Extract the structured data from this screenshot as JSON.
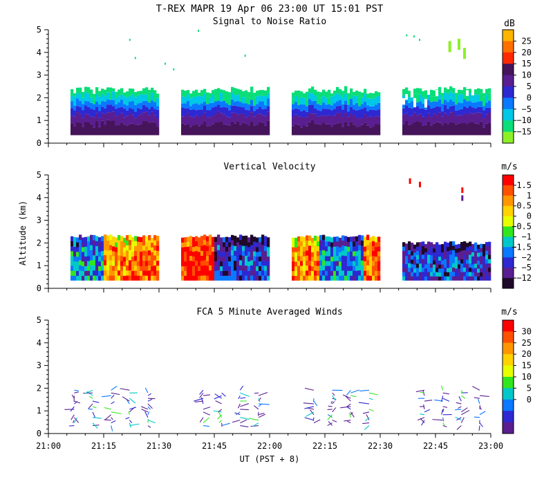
{
  "header": {
    "title": "T-REX  MAPR 19 Apr 06  23:00 UT  15:01  PST"
  },
  "shared_axes": {
    "x_tick_labels": [
      "21:00",
      "21:15",
      "21:30",
      "21:45",
      "22:00",
      "22:15",
      "22:30",
      "22:45",
      "23:00"
    ],
    "x_range_minutes": [
      0,
      120
    ],
    "xlabel": "UT  (PST + 8)",
    "ylabel": "Altitude (km)"
  },
  "chart_data": [
    {
      "id": "snr",
      "type": "heatmap",
      "title": "Signal to Noise Ratio",
      "unit": "dB",
      "xlabel": "",
      "ylabel": "",
      "ylim": [
        0,
        5
      ],
      "y_ticks": [
        "0",
        "1",
        "2",
        "3",
        "4",
        "5"
      ],
      "colorbar_labels": [
        "25",
        "20",
        "15",
        "10",
        "5",
        "0",
        "−5",
        "−10",
        "−15"
      ],
      "colors": [
        "#ffb400",
        "#ff6e00",
        "#ff2800",
        "#46145a",
        "#5a1e91",
        "#2d28d2",
        "#0a78ff",
        "#00c8e6",
        "#0ade78",
        "#8cf028"
      ],
      "segments_ut": [
        [
          "21:06",
          "21:30"
        ],
        [
          "21:36",
          "22:00"
        ],
        [
          "22:06",
          "22:30"
        ],
        [
          "22:36",
          "23:00"
        ]
      ],
      "layers_km": [
        {
          "top": 0.85,
          "value": 12
        },
        {
          "top": 1.25,
          "value": 8
        },
        {
          "top": 1.55,
          "value": 3
        },
        {
          "top": 1.8,
          "value": -3
        },
        {
          "top": 2.1,
          "value": -9
        },
        {
          "top": 2.35,
          "value": -13
        }
      ],
      "gate_bottom_km": 0.35
    },
    {
      "id": "vv",
      "type": "heatmap",
      "title": "Vertical Velocity",
      "unit": "m/s",
      "xlabel": "",
      "ylabel": "Altitude (km)",
      "ylim": [
        0,
        5
      ],
      "y_ticks": [
        "0",
        "1",
        "2",
        "3",
        "4",
        "5"
      ],
      "colorbar_labels": [
        "1.5",
        "1",
        "0.5",
        "0",
        "−0.5",
        "−1",
        "−1.5",
        "−2",
        "−5",
        "−12"
      ],
      "colors": [
        "#ff0000",
        "#ff5000",
        "#ff9600",
        "#ffd200",
        "#e6ff00",
        "#32e61e",
        "#00c8c8",
        "#0a78ff",
        "#2d28d2",
        "#5a1e91",
        "#1e0a28"
      ],
      "segments_ut": [
        [
          "21:06",
          "21:30"
        ],
        [
          "21:36",
          "22:00"
        ],
        [
          "22:06",
          "22:30"
        ],
        [
          "22:36",
          "23:00"
        ]
      ],
      "top_km": 2.3,
      "gate_bottom_km": 0.35
    },
    {
      "id": "winds",
      "type": "scatter",
      "title": "FCA 5 Minute Averaged Winds",
      "unit": "m/s",
      "xlabel": "UT  (PST + 8)",
      "ylabel": "",
      "ylim": [
        0,
        5
      ],
      "y_ticks": [
        "0",
        "1",
        "2",
        "3",
        "4",
        "5"
      ],
      "colorbar_labels": [
        "30",
        "25",
        "20",
        "15",
        "10",
        "5",
        "0"
      ],
      "colors": [
        "#ff0000",
        "#ff5000",
        "#ff9600",
        "#ffd200",
        "#e6ff00",
        "#32e61e",
        "#00c8c8",
        "#0a78ff",
        "#2d28d2",
        "#5a1e91"
      ],
      "profile_times_ut": [
        "21:07",
        "21:12",
        "21:17",
        "21:22",
        "21:27",
        "21:42",
        "21:47",
        "21:52",
        "21:57",
        "22:12",
        "22:17",
        "22:22",
        "22:27",
        "22:42",
        "22:47",
        "22:52",
        "22:57"
      ],
      "altitude_range_km": [
        0.35,
        2.0
      ]
    }
  ]
}
